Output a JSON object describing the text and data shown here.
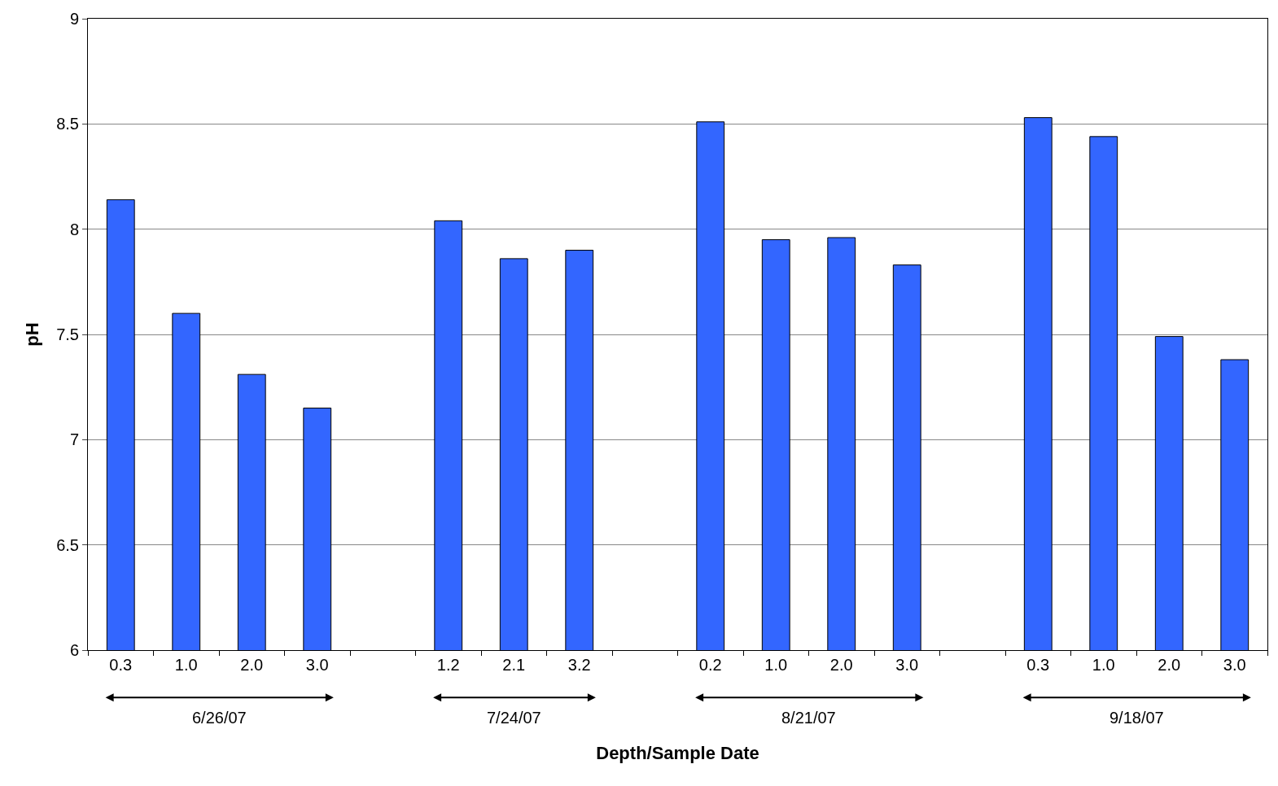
{
  "chart_data": {
    "type": "bar",
    "xlabel": "Depth/Sample Date",
    "ylabel": "pH",
    "categories": [
      "0.3",
      "1.0",
      "2.0",
      "3.0",
      null,
      "1.2",
      "2.1",
      "3.2",
      null,
      "0.2",
      "1.0",
      "2.0",
      "3.0",
      null,
      "0.3",
      "1.0",
      "2.0",
      "3.0"
    ],
    "values": [
      8.14,
      7.6,
      7.31,
      7.15,
      null,
      8.04,
      7.86,
      7.9,
      null,
      8.51,
      7.95,
      7.96,
      7.83,
      null,
      8.53,
      8.44,
      7.49,
      7.38
    ],
    "color": "#3366ff",
    "ylim": [
      6,
      9
    ],
    "yticks": [
      6,
      6.5,
      7,
      7.5,
      8,
      8.5,
      9
    ],
    "grid": "y",
    "annotations": [
      "6/26/07",
      "7/24/07",
      "8/21/07",
      "9/18/07"
    ]
  }
}
